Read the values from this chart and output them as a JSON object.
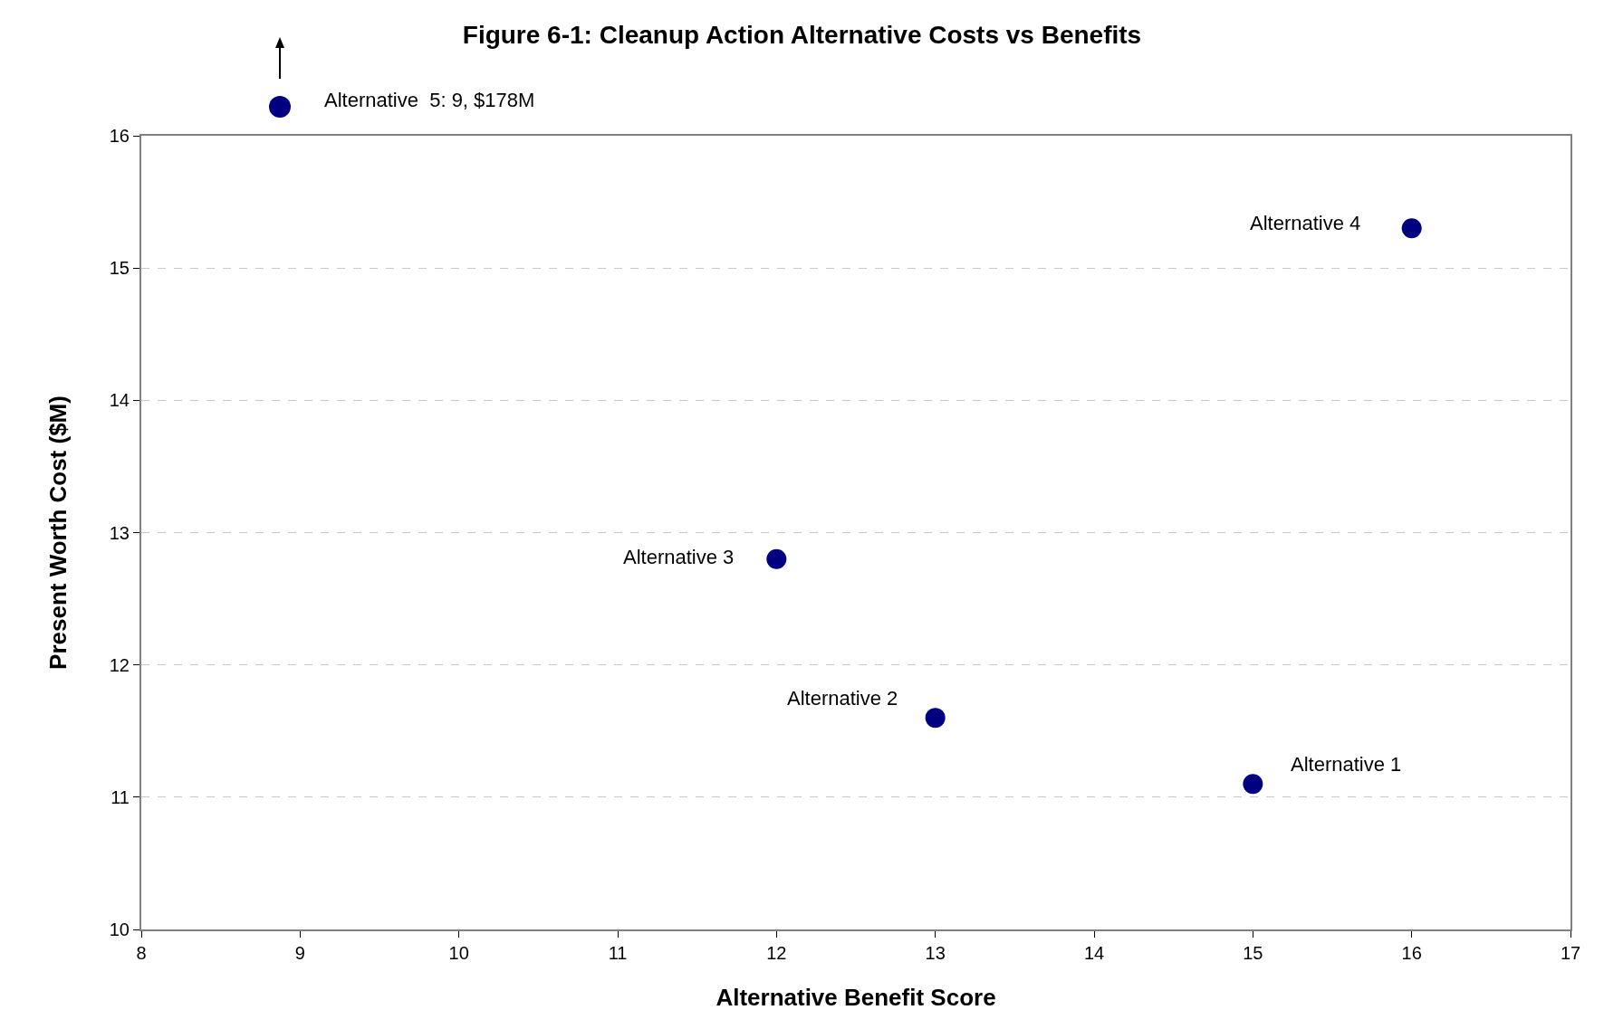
{
  "chart_data": {
    "type": "scatter",
    "title": "Figure 6-1: Cleanup Action Alternative Costs vs Benefits",
    "xlabel": "Alternative Benefit Score",
    "ylabel": "Present Worth Cost ($M)",
    "x": [
      15,
      13,
      12,
      16
    ],
    "series": [
      {
        "color": "#000080",
        "values": [
          11.1,
          11.6,
          12.8,
          15.3
        ]
      }
    ],
    "marker": "circle",
    "grid": "y",
    "xlim": [
      8,
      17
    ],
    "xticks": [
      8,
      9,
      10,
      11,
      12,
      13,
      14,
      15,
      16,
      17
    ],
    "ylim": [
      10,
      16
    ],
    "yticks": [
      10,
      11,
      12,
      13,
      14,
      15,
      16
    ],
    "annotations": [
      {
        "text": "Alternative 1",
        "x": 15,
        "y": 11.1
      },
      {
        "text": "Alternative 2",
        "x": 13,
        "y": 11.6
      },
      {
        "text": "Alternative 3",
        "x": 12,
        "y": 12.8
      },
      {
        "text": "Alternative 4",
        "x": 16,
        "y": 15.3
      },
      "Alternative  5: 9, $178M"
    ]
  }
}
